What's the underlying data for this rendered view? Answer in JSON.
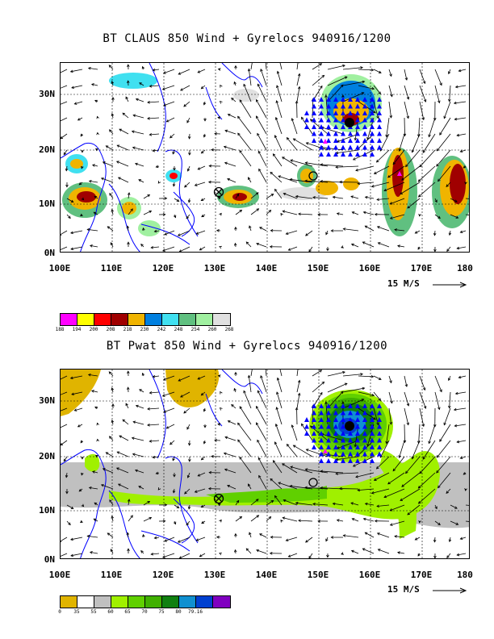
{
  "panels": [
    {
      "title": "BT CLAUS 850 Wind + Gyrelocs 940916/1200",
      "y_labels": [
        "30N",
        "20N",
        "10N",
        "0N"
      ],
      "x_labels": [
        "100E",
        "110E",
        "120E",
        "130E",
        "140E",
        "150E",
        "160E",
        "170E",
        "180"
      ],
      "ref_vector": "15 M/S",
      "legend": {
        "colors": [
          "#ff00ff",
          "#ffff00",
          "#ff0000",
          "#a00000",
          "#f0b400",
          "#0080e0",
          "#40e0f0",
          "#60c080",
          "#a0f0a0",
          "#e0e0e0"
        ],
        "labels": [
          "188",
          "194",
          "200",
          "208",
          "218",
          "230",
          "242",
          "248",
          "254",
          "260",
          "268"
        ]
      }
    },
    {
      "title": "BT Pwat 850 Wind + Gyrelocs 940916/1200",
      "y_labels": [
        "30N",
        "20N",
        "10N",
        "0N"
      ],
      "x_labels": [
        "100E",
        "110E",
        "120E",
        "130E",
        "140E",
        "150E",
        "160E",
        "170E",
        "180"
      ],
      "ref_vector": "15 M/S",
      "legend": {
        "colors": [
          "#e0b400",
          "#ffffff",
          "#c0c0c0",
          "#a0f000",
          "#60d000",
          "#40b000",
          "#108010",
          "#1090d0",
          "#0040d0",
          "#8000c0"
        ],
        "labels": [
          "0",
          "35",
          "55",
          "60",
          "65",
          "70",
          "75",
          "80",
          "79.16"
        ]
      }
    }
  ]
}
